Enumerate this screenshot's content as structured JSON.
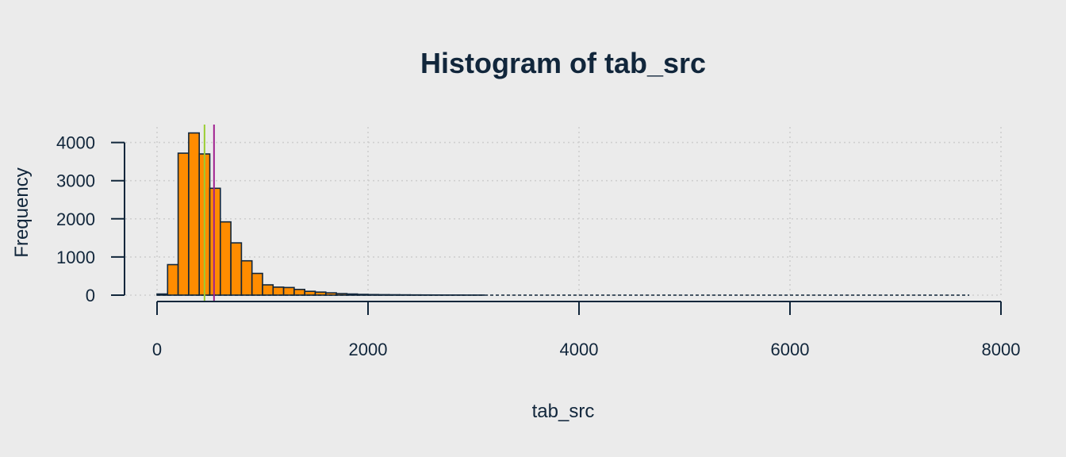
{
  "chart_data": {
    "type": "bar",
    "title": "Histogram of tab_src",
    "xlabel": "tab_src",
    "ylabel": "Frequency",
    "xlim": [
      0,
      8000
    ],
    "ylim": [
      0,
      4400
    ],
    "x_ticks": [
      0,
      2000,
      4000,
      6000,
      8000
    ],
    "y_ticks": [
      0,
      1000,
      2000,
      3000,
      4000
    ],
    "grid": true,
    "bin_width": 100,
    "bins_start": [
      0,
      100,
      200,
      300,
      400,
      500,
      600,
      700,
      800,
      900,
      1000,
      1100,
      1200,
      1300,
      1400,
      1500,
      1600,
      1700,
      1800,
      1900,
      2000,
      2100,
      2200,
      2300,
      2400,
      2500,
      2600,
      2700,
      2800,
      2900,
      3000
    ],
    "values": [
      30,
      800,
      3720,
      4250,
      3700,
      2800,
      1920,
      1370,
      900,
      570,
      270,
      210,
      200,
      150,
      100,
      80,
      60,
      40,
      30,
      20,
      15,
      12,
      10,
      8,
      6,
      5,
      4,
      3,
      3,
      2,
      2
    ],
    "bar_color": "#ff8c00",
    "baseline": {
      "from": 0,
      "to": 7700,
      "style": "dashed"
    },
    "reference_lines": [
      {
        "value": 450,
        "color": "#9acd32"
      },
      {
        "value": 540,
        "color": "#a0208f"
      }
    ]
  }
}
